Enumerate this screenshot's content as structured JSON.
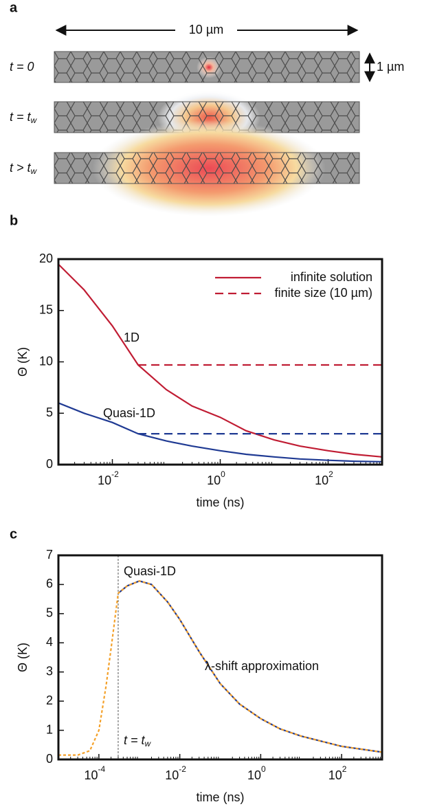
{
  "panel_labels": [
    "a",
    "b",
    "c"
  ],
  "panel_a": {
    "length_label": "10 µm",
    "width_label": "1 µm",
    "rows": [
      {
        "text": "t = 0",
        "subscript": null
      },
      {
        "text": "t = t",
        "subscript": "w"
      },
      {
        "text": "t > t",
        "subscript": "w"
      }
    ]
  },
  "chart_data": [
    {
      "type": "line",
      "xlabel": "time (ns)",
      "ylabel": "Θ (K)",
      "xscale": "log",
      "xlim": [
        0.001,
        1000
      ],
      "ylim": [
        0,
        20
      ],
      "xticks": [
        {
          "value": 0.01,
          "label": "10",
          "exponent": "-2"
        },
        {
          "value": 1,
          "label": "10",
          "exponent": "0"
        },
        {
          "value": 100,
          "label": "10",
          "exponent": "2"
        }
      ],
      "yticks": [
        0,
        5,
        10,
        15,
        20
      ],
      "legend": [
        {
          "label": "infinite solution",
          "dash": false,
          "color": "#c01c33"
        },
        {
          "label": "finite size (10 µm)",
          "dash": true,
          "color": "#c01c33"
        }
      ],
      "legend_position": "upper right",
      "annotations": [
        {
          "text": "1D",
          "color": "#c01c33"
        },
        {
          "text": "Quasi-1D",
          "color": "#1f3a93"
        }
      ],
      "series": [
        {
          "color": "#c01c33",
          "dash": false,
          "x": [
            0.001,
            0.003,
            0.01,
            0.03,
            0.1,
            0.3,
            1,
            3,
            10,
            30,
            100,
            300,
            1000
          ],
          "values": [
            19.5,
            17,
            13.5,
            9.7,
            7.3,
            5.7,
            4.6,
            3.3,
            2.4,
            1.8,
            1.35,
            1.0,
            0.75
          ]
        },
        {
          "color": "#c01c33",
          "dash": true,
          "x": [
            0.03,
            1000
          ],
          "values": [
            9.7,
            9.7
          ]
        },
        {
          "color": "#1f3a93",
          "dash": false,
          "x": [
            0.001,
            0.003,
            0.01,
            0.03,
            0.1,
            0.3,
            1,
            3,
            10,
            30,
            100,
            300,
            1000
          ],
          "values": [
            6,
            5,
            4.1,
            3.0,
            2.3,
            1.8,
            1.35,
            1.0,
            0.75,
            0.55,
            0.42,
            0.33,
            0.28
          ]
        },
        {
          "color": "#1f3a93",
          "dash": true,
          "x": [
            0.03,
            1000
          ],
          "values": [
            3.0,
            3.0
          ]
        }
      ]
    },
    {
      "type": "line",
      "xlabel": "time (ns)",
      "ylabel": "Θ (K)",
      "xscale": "log",
      "xlim": [
        1e-05,
        1000
      ],
      "ylim": [
        0,
        7
      ],
      "xticks": [
        {
          "value": 0.0001,
          "label": "10",
          "exponent": "-4"
        },
        {
          "value": 0.01,
          "label": "10",
          "exponent": "-2"
        },
        {
          "value": 1,
          "label": "10",
          "exponent": "0"
        },
        {
          "value": 100,
          "label": "10",
          "exponent": "2"
        }
      ],
      "yticks": [
        0,
        1,
        2,
        3,
        4,
        5,
        6,
        7
      ],
      "vline": {
        "x": 0.0003,
        "text": "t = t",
        "subscript": "w"
      },
      "annotations": [
        {
          "text": "Quasi-1D",
          "color": "#222222"
        },
        {
          "text": "λ-shift approximation",
          "color": "#f4a12a"
        }
      ],
      "series": [
        {
          "color": "#1f3a93",
          "dash": false,
          "x": [
            0.0003,
            0.0005,
            0.001,
            0.002,
            0.005,
            0.01,
            0.03,
            0.1,
            0.3,
            1,
            3,
            10,
            100,
            1000
          ],
          "values": [
            5.7,
            5.95,
            6.12,
            6.0,
            5.4,
            4.8,
            3.7,
            2.6,
            1.9,
            1.4,
            1.05,
            0.8,
            0.45,
            0.25
          ]
        },
        {
          "color": "#f4a12a",
          "dash": true,
          "x": [
            1e-05,
            3e-05,
            6e-05,
            0.0001,
            0.00015,
            0.0002,
            0.0003,
            0.0005,
            0.001,
            0.002,
            0.005,
            0.01,
            0.03,
            0.1,
            0.3,
            1,
            3,
            10,
            100,
            1000
          ],
          "values": [
            0.15,
            0.15,
            0.3,
            1.0,
            2.5,
            3.8,
            5.7,
            5.95,
            6.12,
            6.0,
            5.4,
            4.8,
            3.7,
            2.6,
            1.9,
            1.4,
            1.05,
            0.8,
            0.45,
            0.25
          ]
        }
      ]
    }
  ]
}
